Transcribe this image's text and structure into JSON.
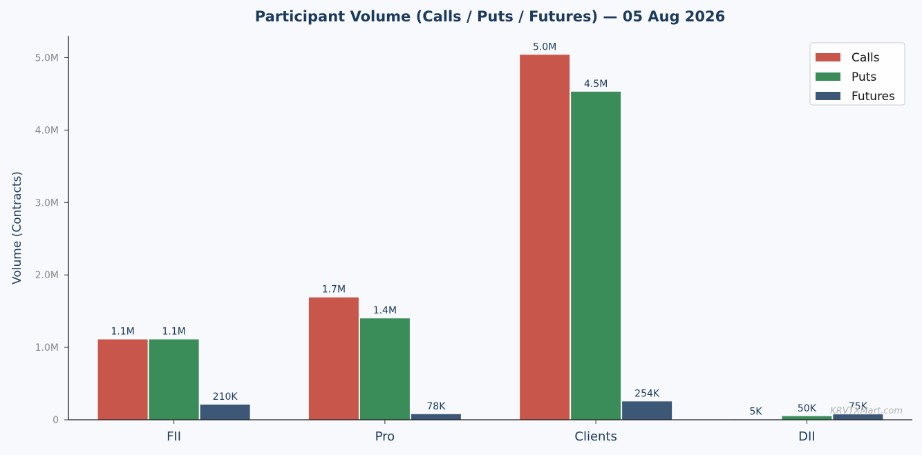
{
  "chart_data": {
    "type": "bar",
    "title": "Participant Volume (Calls / Puts / Futures) — 05 Aug 2026",
    "xlabel": "",
    "ylabel": "Volume (Contracts)",
    "categories": [
      "FII",
      "Pro",
      "Clients",
      "DII"
    ],
    "series": [
      {
        "name": "Calls",
        "color": "#c8564a",
        "values": [
          1110000,
          1690000,
          5040000,
          5000
        ],
        "labels": [
          "1.1M",
          "1.7M",
          "5.0M",
          "5K"
        ]
      },
      {
        "name": "Puts",
        "color": "#3a8c58",
        "values": [
          1110000,
          1400000,
          4530000,
          50000
        ],
        "labels": [
          "1.1M",
          "1.4M",
          "4.5M",
          "50K"
        ]
      },
      {
        "name": "Futures",
        "color": "#3c5876",
        "values": [
          210000,
          78000,
          254000,
          75000
        ],
        "labels": [
          "210K",
          "78K",
          "254K",
          "75K"
        ]
      }
    ],
    "ylim": [
      0,
      5300000
    ],
    "yticks": [
      {
        "value": 0,
        "label": "0"
      },
      {
        "value": 1000000,
        "label": "1.0M"
      },
      {
        "value": 2000000,
        "label": "2.0M"
      },
      {
        "value": 3000000,
        "label": "3.0M"
      },
      {
        "value": 4000000,
        "label": "4.0M"
      },
      {
        "value": 5000000,
        "label": "5.0M"
      }
    ],
    "grid": false,
    "legend": "top-right",
    "watermark": "KRVTXMart.com"
  }
}
